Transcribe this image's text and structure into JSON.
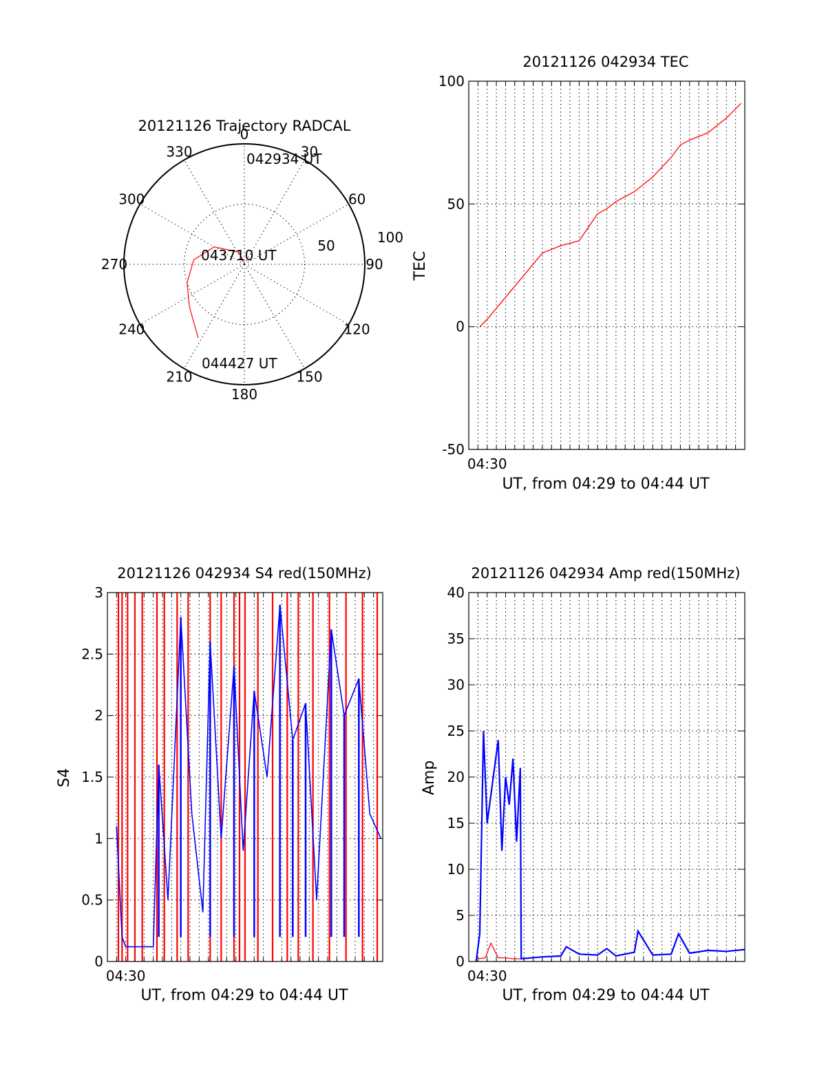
{
  "chart_data": [
    {
      "type": "polar",
      "title": "20121126 Trajectory RADCAL",
      "angle_labels": [
        "0",
        "30",
        "60",
        "90",
        "120",
        "150",
        "180",
        "210",
        "240",
        "270",
        "300",
        "330"
      ],
      "radius_labels": [
        "50",
        "100"
      ],
      "r_max": 100,
      "annotations": [
        "042934 UT",
        "043710 UT",
        "044427 UT"
      ],
      "track": {
        "color": "#ff0000",
        "points": [
          {
            "az": 0,
            "el": 89
          },
          {
            "az": 335,
            "el": 80
          },
          {
            "az": 300,
            "el": 64
          },
          {
            "az": 275,
            "el": 52
          },
          {
            "az": 252,
            "el": 45
          },
          {
            "az": 232,
            "el": 38
          },
          {
            "az": 212,
            "el": 25
          }
        ]
      }
    },
    {
      "type": "line",
      "title": "20121126 042934 TEC",
      "xlabel": "UT, from 04:29 to 04:44 UT",
      "ylabel": "TEC",
      "x_ticklabels": [
        "04:30"
      ],
      "xlim": [
        0,
        15
      ],
      "ylim": [
        -50,
        100
      ],
      "y_ticks": [
        -50,
        0,
        50,
        100
      ],
      "x_grid_step_min": 0.5,
      "series": [
        {
          "color": "#ff0000",
          "x": [
            0.6,
            1.0,
            2.0,
            3.0,
            4.0,
            5.0,
            6.0,
            7.0,
            7.5,
            8.0,
            9.0,
            10.0,
            11.0,
            11.5,
            12.0,
            13.0,
            14.0,
            14.8
          ],
          "y": [
            0,
            3,
            12,
            21,
            30,
            33,
            35,
            46,
            48,
            51,
            55,
            61,
            69,
            74,
            76,
            79,
            85,
            91
          ]
        }
      ]
    },
    {
      "type": "line",
      "title": "20121126 042934 S4 red(150MHz)",
      "xlabel": "UT, from 04:29 to 04:44 UT",
      "ylabel": "S4",
      "x_ticklabels": [
        "04:30"
      ],
      "xlim": [
        0,
        15
      ],
      "ylim": [
        0,
        3
      ],
      "y_ticks": [
        0,
        0.5,
        1,
        1.5,
        2,
        2.5,
        3
      ],
      "x_grid_step_min": 0.5,
      "series": [
        {
          "color": "#ff0000",
          "x": [
            0.6,
            0.8,
            1.1,
            1.5,
            1.9,
            2.7,
            3.1,
            3.8,
            4.4,
            5.6,
            6.2,
            6.9,
            7.2,
            7.5,
            8.2,
            9.0,
            9.8,
            10.4,
            11.2,
            12.1,
            13.0,
            13.9,
            14.7
          ],
          "y": [
            3,
            3,
            3,
            3,
            3,
            3,
            3,
            3,
            3,
            3,
            3,
            3,
            3,
            3,
            3,
            3,
            3,
            3,
            3,
            3,
            3,
            3,
            3
          ]
        },
        {
          "color": "#0000ff",
          "x": [
            0.5,
            0.8,
            1.0,
            2.5,
            2.8,
            3.3,
            4.0,
            4.6,
            5.2,
            5.6,
            6.2,
            6.9,
            7.4,
            8.0,
            8.7,
            9.4,
            10.1,
            10.8,
            11.4,
            12.2,
            12.9,
            13.7,
            14.3,
            14.9
          ],
          "y": [
            1.1,
            0.2,
            0.12,
            0.12,
            1.6,
            0.5,
            2.8,
            1.2,
            0.4,
            2.6,
            1.0,
            2.4,
            0.9,
            2.2,
            1.5,
            2.9,
            1.8,
            2.1,
            0.5,
            2.7,
            2.0,
            2.3,
            1.2,
            1.0
          ]
        }
      ]
    },
    {
      "type": "line",
      "title": "20121126 042934 Amp red(150MHz)",
      "xlabel": "UT, from 04:29 to 04:44 UT",
      "ylabel": "Amp",
      "x_ticklabels": [
        "04:30"
      ],
      "xlim": [
        0,
        15
      ],
      "ylim": [
        0,
        40
      ],
      "y_ticks": [
        0,
        5,
        10,
        15,
        20,
        25,
        30,
        35,
        40
      ],
      "x_grid_step_min": 0.5,
      "series": [
        {
          "color": "#0000ff",
          "x": [
            0.4,
            0.6,
            0.8,
            1.0,
            1.2,
            1.4,
            1.6,
            1.8,
            2.0,
            2.2,
            2.4,
            2.6,
            2.8,
            2.85,
            4.0,
            5.0,
            5.3,
            6.0,
            7.0,
            7.5,
            8.0,
            9.0,
            9.2,
            10.0,
            11.0,
            11.4,
            12.0,
            13.0,
            14.0,
            15.0
          ],
          "y": [
            0,
            3,
            25,
            15,
            18,
            21,
            24,
            12,
            20,
            17,
            22,
            13,
            21,
            0.3,
            0.5,
            0.6,
            1.6,
            0.8,
            0.7,
            1.4,
            0.6,
            1.0,
            3.3,
            0.7,
            0.8,
            3.0,
            0.9,
            1.2,
            1.1,
            1.3
          ]
        },
        {
          "color": "#ff0000",
          "x": [
            0.5,
            0.9,
            1.2,
            1.6,
            2.0,
            2.4,
            2.8
          ],
          "y": [
            0.3,
            0.4,
            2.0,
            0.4,
            0.4,
            0.3,
            0.3
          ]
        }
      ]
    }
  ]
}
